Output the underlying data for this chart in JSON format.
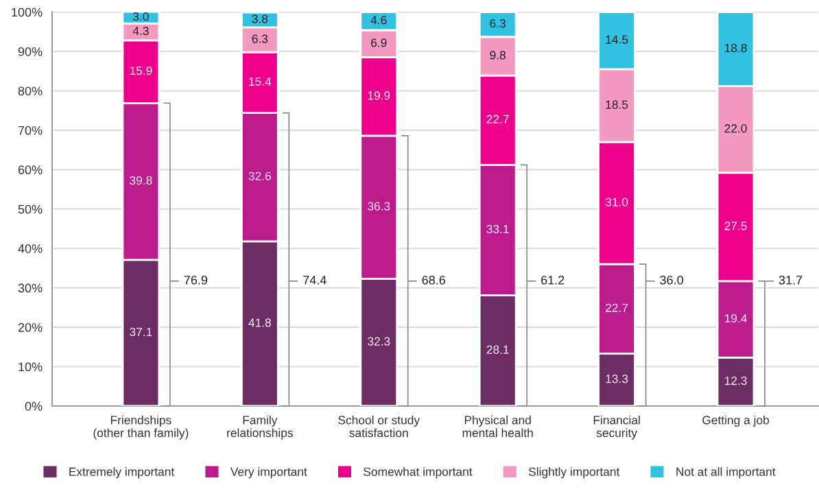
{
  "chart_data": {
    "type": "bar",
    "stacked": true,
    "categories": [
      "Friendships\n(other than family)",
      "Family\nrelationships",
      "School or study\nsatisfaction",
      "Physical and\nmental health",
      "Financial\nsecurity",
      "Getting a job"
    ],
    "series": [
      {
        "name": "Extremely important",
        "color": "#6b2d63",
        "values": [
          37.1,
          41.8,
          32.3,
          28.1,
          13.3,
          12.3
        ],
        "value_labels": [
          "37.1",
          "41.8",
          "32.3",
          "28.1",
          "13.3",
          "12.3"
        ]
      },
      {
        "name": "Very important",
        "color": "#bc1b8c",
        "values": [
          39.8,
          32.6,
          36.3,
          33.1,
          22.7,
          19.4
        ],
        "value_labels": [
          "39.8",
          "32.6",
          "36.3",
          "33.1",
          "22.7",
          "19.4"
        ]
      },
      {
        "name": "Somewhat important",
        "color": "#ec008c",
        "values": [
          15.9,
          15.4,
          19.9,
          22.7,
          31.0,
          27.5
        ],
        "value_labels": [
          "15.9",
          "15.4",
          "19.9",
          "22.7",
          "31.0",
          "27.5"
        ]
      },
      {
        "name": "Slightly important",
        "color": "#f49ac1",
        "values": [
          4.3,
          6.3,
          6.9,
          9.8,
          18.5,
          22.0
        ],
        "value_labels": [
          "4.3",
          "6.3",
          "6.9",
          "9.8",
          "18.5",
          "22.0"
        ]
      },
      {
        "name": "Not at all important",
        "color": "#33c1e2",
        "values": [
          3.0,
          3.8,
          4.6,
          6.3,
          14.5,
          18.8
        ],
        "value_labels": [
          "3.0",
          "3.8",
          "4.6",
          "6.3",
          "14.5",
          "18.8"
        ]
      }
    ],
    "ylim": [
      0,
      100.1
    ],
    "yticks": [
      {
        "value": 0,
        "label": "0%"
      },
      {
        "value": 10,
        "label": "10%"
      },
      {
        "value": 20,
        "label": "20%"
      },
      {
        "value": 30,
        "label": "30%"
      },
      {
        "value": 40,
        "label": "40%"
      },
      {
        "value": 50,
        "label": "50%"
      },
      {
        "value": 60,
        "label": "60%"
      },
      {
        "value": 70,
        "label": "70%"
      },
      {
        "value": 80,
        "label": "80%"
      },
      {
        "value": 90,
        "label": "90%"
      },
      {
        "value": 100,
        "label": "100%"
      }
    ],
    "annotations": [
      "76.9",
      "74.4",
      "68.6",
      "61.2",
      "36.0",
      "31.7"
    ],
    "grid": "y",
    "legend": "bottom"
  }
}
